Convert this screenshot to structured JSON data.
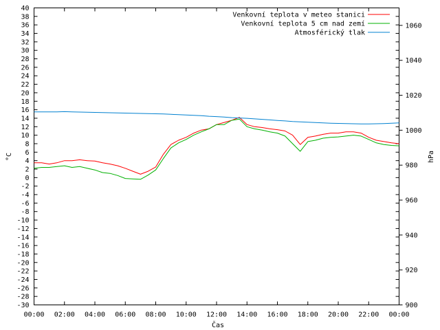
{
  "chart_data": {
    "type": "line",
    "title": "",
    "xlabel": "Čas",
    "ylabel_left": "°C",
    "ylabel_right": "hPa",
    "x_ticks": [
      "00:00",
      "02:00",
      "04:00",
      "06:00",
      "08:00",
      "10:00",
      "12:00",
      "14:00",
      "16:00",
      "18:00",
      "20:00",
      "22:00",
      "00:00"
    ],
    "xlim_hours": [
      0,
      24
    ],
    "ylim_left": [
      -30,
      40
    ],
    "y_left_ticks": [
      40,
      38,
      36,
      34,
      32,
      30,
      28,
      26,
      24,
      22,
      20,
      18,
      16,
      14,
      12,
      10,
      8,
      6,
      4,
      2,
      0,
      -2,
      -4,
      -6,
      -8,
      -10,
      -12,
      -14,
      -16,
      -18,
      -20,
      -22,
      -24,
      -26,
      -28,
      -30
    ],
    "ylim_right": [
      900,
      1070
    ],
    "y_right_ticks": [
      1060,
      1040,
      1020,
      1000,
      980,
      960,
      940,
      920,
      900
    ],
    "grid": false,
    "legend_position": "top-right",
    "x_hours": [
      0,
      0.5,
      1,
      1.5,
      2,
      2.5,
      3,
      3.5,
      4,
      4.5,
      5,
      5.5,
      6,
      6.5,
      7,
      7.5,
      8,
      8.5,
      9,
      9.5,
      10,
      10.5,
      11,
      11.5,
      12,
      12.5,
      13,
      13.5,
      14,
      14.5,
      15,
      15.5,
      16,
      16.5,
      17,
      17.5,
      18,
      18.5,
      19,
      19.5,
      20,
      20.5,
      21,
      21.5,
      22,
      22.5,
      23,
      23.5,
      24
    ],
    "series": [
      {
        "name": "Venkovní teplota v meteo stanici",
        "color": "#ff0000",
        "axis": "left",
        "values": [
          3.5,
          3.5,
          3.2,
          3.5,
          4.0,
          4.0,
          4.2,
          4.0,
          3.9,
          3.5,
          3.2,
          2.8,
          2.2,
          1.5,
          0.8,
          1.5,
          2.5,
          5.5,
          7.8,
          8.8,
          9.5,
          10.5,
          11.2,
          11.5,
          12.5,
          13.0,
          13.5,
          14.2,
          12.5,
          12.0,
          11.8,
          11.5,
          11.3,
          11.0,
          10.0,
          7.8,
          9.5,
          9.8,
          10.2,
          10.5,
          10.5,
          10.8,
          10.8,
          10.5,
          9.5,
          8.8,
          8.5,
          8.2,
          8.0
        ]
      },
      {
        "name": "Venkovní teplota 5 cm nad zemí",
        "color": "#00b000",
        "axis": "left",
        "values": [
          2.2,
          2.4,
          2.4,
          2.6,
          2.8,
          2.4,
          2.6,
          2.2,
          1.8,
          1.2,
          1.0,
          0.5,
          -0.2,
          -0.3,
          -0.4,
          0.6,
          1.8,
          4.5,
          7.0,
          8.2,
          9.0,
          10.0,
          10.8,
          11.5,
          12.5,
          12.5,
          13.5,
          13.8,
          12.0,
          11.5,
          11.2,
          10.8,
          10.5,
          9.8,
          8.0,
          6.2,
          8.5,
          8.8,
          9.3,
          9.5,
          9.6,
          9.8,
          10.0,
          9.8,
          9.0,
          8.2,
          7.8,
          7.6,
          7.5
        ]
      },
      {
        "name": "Atmosférický tlak",
        "color": "#0080d0",
        "axis": "right",
        "values": [
          1010.5,
          1010.5,
          1010.5,
          1010.5,
          1010.6,
          1010.5,
          1010.4,
          1010.3,
          1010.2,
          1010.1,
          1010.0,
          1009.9,
          1009.8,
          1009.7,
          1009.6,
          1009.5,
          1009.4,
          1009.3,
          1009.1,
          1008.9,
          1008.7,
          1008.5,
          1008.3,
          1008.0,
          1007.8,
          1007.5,
          1007.2,
          1007.0,
          1006.8,
          1006.5,
          1006.2,
          1005.9,
          1005.6,
          1005.3,
          1005.0,
          1004.8,
          1004.6,
          1004.4,
          1004.2,
          1004.0,
          1003.9,
          1003.8,
          1003.7,
          1003.6,
          1003.6,
          1003.7,
          1003.8,
          1004.0,
          1004.2
        ]
      }
    ]
  }
}
